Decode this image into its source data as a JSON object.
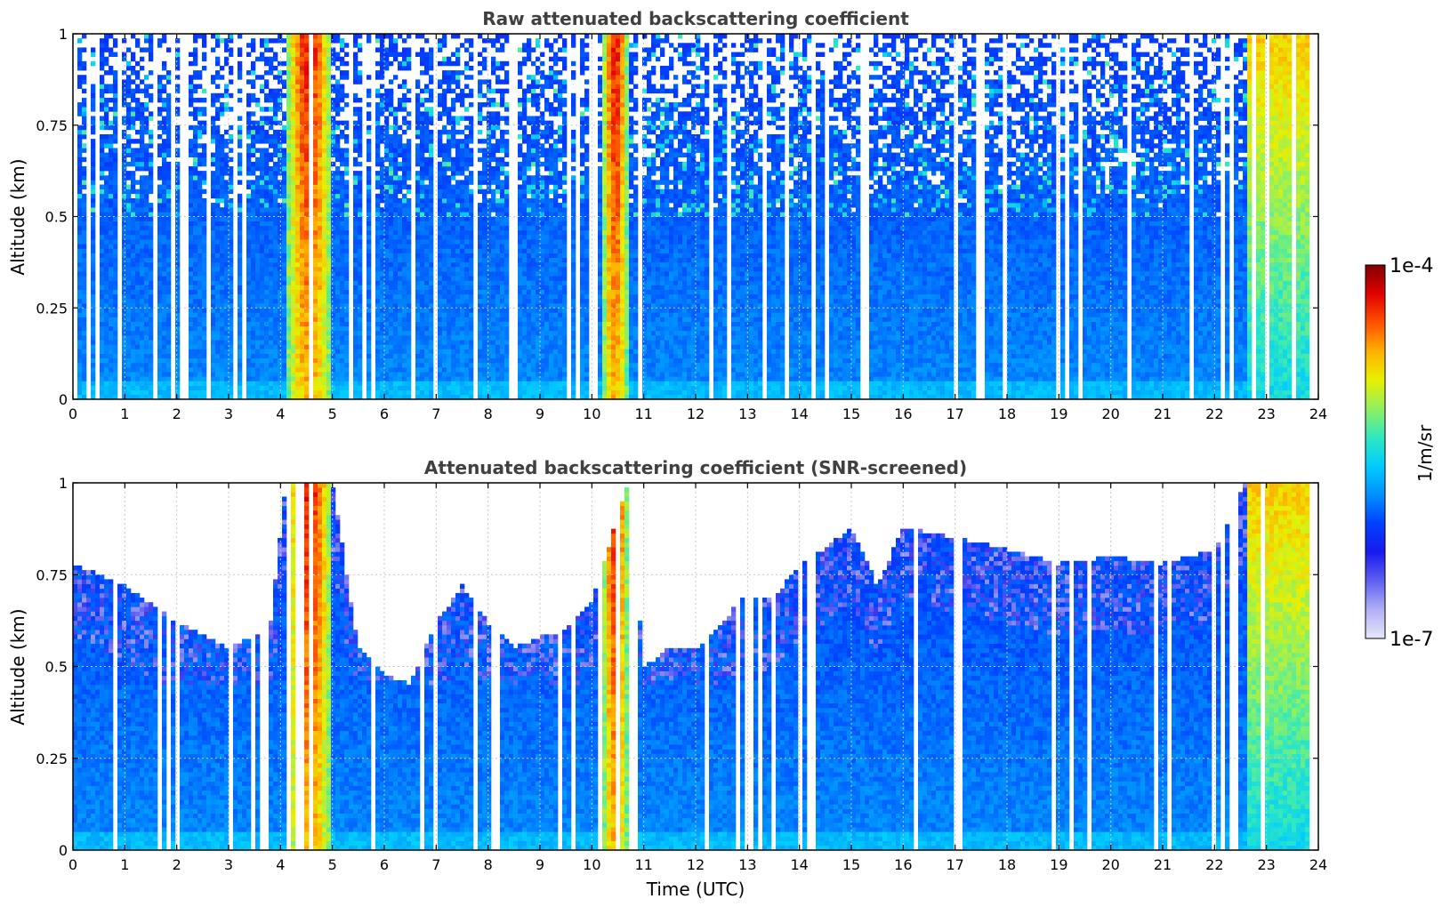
{
  "chart_data": [
    {
      "type": "heatmap",
      "title": "Raw attenuated backscattering coefficient",
      "xlabel": "",
      "ylabel": "Altitude (km)",
      "xlim": [
        0,
        24
      ],
      "ylim": [
        0,
        1
      ],
      "x_ticks": [
        "0",
        "1",
        "2",
        "3",
        "4",
        "5",
        "6",
        "7",
        "8",
        "9",
        "10",
        "11",
        "12",
        "13",
        "14",
        "15",
        "16",
        "17",
        "18",
        "19",
        "20",
        "21",
        "22",
        "23",
        "24"
      ],
      "y_ticks": [
        "0",
        "0.25",
        "0.5",
        "0.75",
        "1"
      ],
      "y_tick_values": [
        0,
        0.25,
        0.5,
        0.75,
        1
      ],
      "grid": true,
      "screened": false,
      "signal_top_km": 1.0,
      "strong_signal_bands_utc": [
        [
          4.1,
          5.0
        ],
        [
          10.2,
          10.7
        ],
        [
          22.6,
          23.8
        ]
      ],
      "data_end_utc": 23.8
    },
    {
      "type": "heatmap",
      "title": "Attenuated backscattering coefficient (SNR-screened)",
      "xlabel": "Time (UTC)",
      "ylabel": "Altitude (km)",
      "xlim": [
        0,
        24
      ],
      "ylim": [
        0,
        1
      ],
      "x_ticks": [
        "0",
        "1",
        "2",
        "3",
        "4",
        "5",
        "6",
        "7",
        "8",
        "9",
        "10",
        "11",
        "12",
        "13",
        "14",
        "15",
        "16",
        "17",
        "18",
        "19",
        "20",
        "21",
        "22",
        "23",
        "24"
      ],
      "y_ticks": [
        "0",
        "0.25",
        "0.5",
        "0.75",
        "1"
      ],
      "y_tick_values": [
        0,
        0.25,
        0.5,
        0.75,
        1
      ],
      "grid": true,
      "screened": true,
      "signal_top_profile": {
        "x": [
          0,
          1,
          2,
          3,
          3.8,
          4.1,
          5.0,
          5.5,
          6,
          6.5,
          7,
          7.5,
          8,
          8.5,
          9,
          9.5,
          10,
          10.7,
          11,
          11.5,
          12,
          12.5,
          13,
          13.5,
          14,
          14.5,
          15,
          15.5,
          16,
          17,
          18,
          19,
          20,
          21,
          22,
          22.6,
          23.8
        ],
        "y": [
          0.78,
          0.72,
          0.62,
          0.55,
          0.6,
          1.0,
          1.0,
          0.55,
          0.48,
          0.45,
          0.62,
          0.72,
          0.62,
          0.55,
          0.58,
          0.6,
          0.68,
          1.0,
          0.5,
          0.55,
          0.55,
          0.62,
          0.7,
          0.68,
          0.78,
          0.82,
          0.88,
          0.72,
          0.88,
          0.85,
          0.82,
          0.78,
          0.8,
          0.78,
          0.82,
          1.0,
          1.0
        ]
      },
      "strong_signal_bands_utc": [
        [
          4.1,
          5.0
        ],
        [
          10.2,
          10.7
        ],
        [
          22.6,
          23.8
        ]
      ],
      "data_end_utc": 23.8
    }
  ],
  "colorbar": {
    "max_label": "1e-4",
    "min_label": "1e-7",
    "unit_label": "1/m/sr",
    "scale": "log",
    "range": [
      1e-07,
      0.0001
    ],
    "colors": [
      "#e6e6fa",
      "#b0b0f5",
      "#6060f0",
      "#1a1aee",
      "#0040ff",
      "#0090ff",
      "#00ccff",
      "#30e8c0",
      "#90f060",
      "#e8f000",
      "#ffb000",
      "#ff5000",
      "#e00000",
      "#800000"
    ]
  }
}
